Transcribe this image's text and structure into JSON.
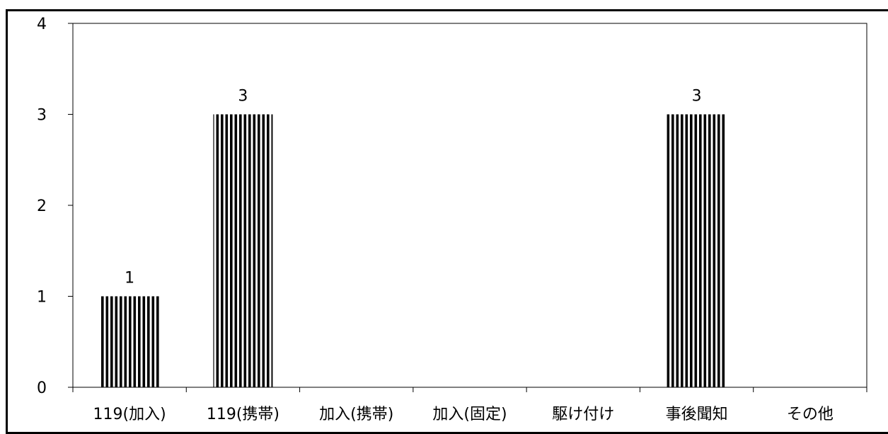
{
  "chart_data": {
    "type": "bar",
    "categories": [
      "119(加入)",
      "119(携帯)",
      "加入(携帯)",
      "加入(固定)",
      "駆け付け",
      "事後聞知",
      "その他"
    ],
    "values": [
      1,
      3,
      null,
      null,
      null,
      3,
      null
    ],
    "data_labels": [
      "1",
      "3",
      "",
      "",
      "",
      "3",
      ""
    ],
    "ylim": [
      0,
      4
    ],
    "yticks": [
      0,
      1,
      2,
      3,
      4
    ],
    "title": "",
    "xlabel": "",
    "ylabel": "",
    "grid": false,
    "legend": "none",
    "bar_fill": "vertical-stripes",
    "bar_color": "#000000"
  }
}
